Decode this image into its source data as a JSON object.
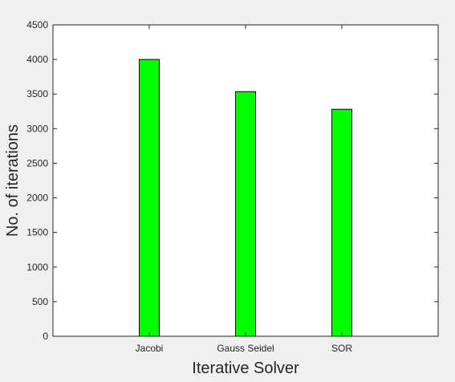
{
  "chart_data": {
    "type": "bar",
    "categories": [
      "Jacobi",
      "Gauss Seidel",
      "SOR"
    ],
    "series": [
      {
        "values": [
          4000,
          3535,
          3280
        ]
      }
    ],
    "xlabel": "Iterative Solver",
    "ylabel": "No. of iterations",
    "ylim": [
      0,
      4500
    ],
    "yticks": [
      0,
      500,
      1000,
      1500,
      2000,
      2500,
      3000,
      3500,
      4000,
      4500
    ],
    "grid": false,
    "bar_color": "#00ff00",
    "bar_edge_color": "#000000",
    "plot_background": "#ffffff",
    "figure_background": "#f0f0f0"
  }
}
